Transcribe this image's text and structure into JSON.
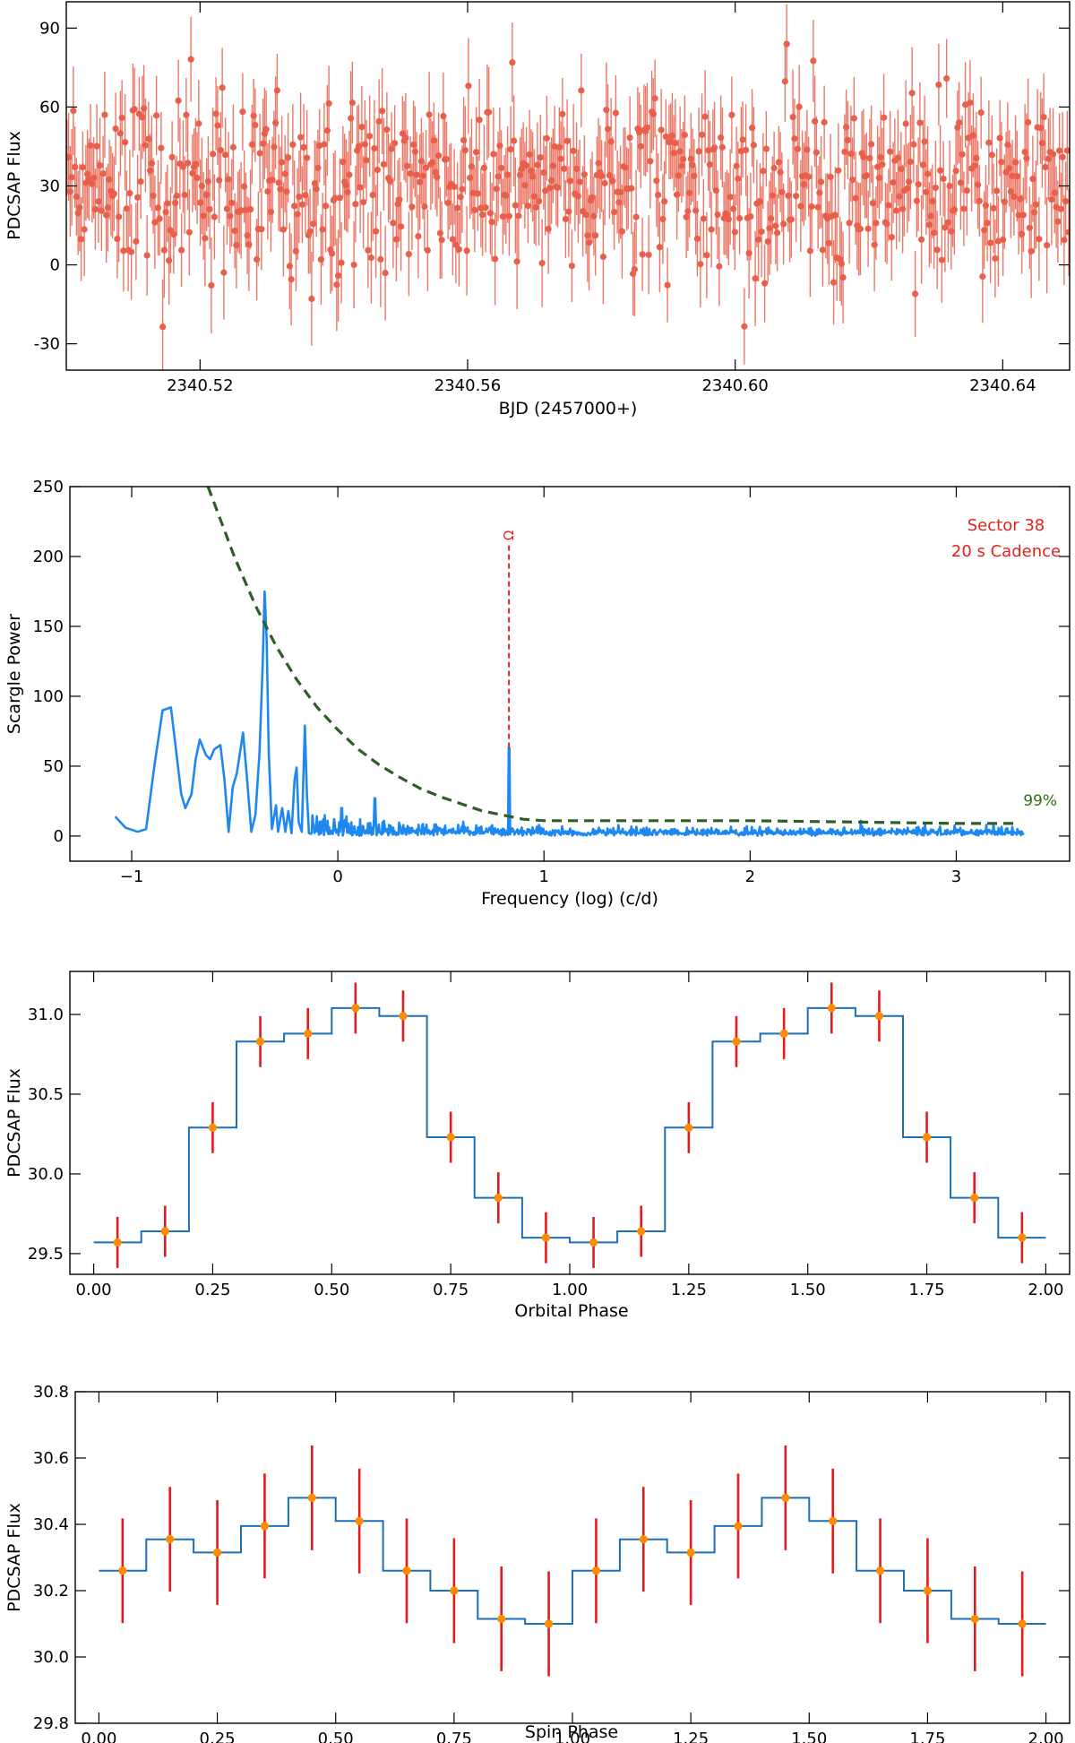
{
  "chart_data": [
    {
      "type": "scatter",
      "panel": "lightcurve",
      "xlabel": "BJD (2457000+)",
      "ylabel": "PDCSAP Flux",
      "xlim": [
        2340.5,
        2340.65
      ],
      "ylim": [
        -40,
        100
      ],
      "x_ticks": [
        2340.52,
        2340.56,
        2340.6,
        2340.64
      ],
      "x_tick_labels": [
        "2340.52",
        "2340.56",
        "2340.60",
        "2340.64"
      ],
      "y_ticks": [
        -30,
        0,
        30,
        60,
        90
      ],
      "y_tick_labels": [
        "-30",
        "0",
        "30",
        "60",
        "90"
      ],
      "n_points": 640,
      "mean_flux": 30,
      "flux_scatter": 18,
      "typical_error": 16,
      "color": "#e8604c"
    },
    {
      "type": "line",
      "panel": "periodogram",
      "xlabel": "Frequency (log) (c/d)",
      "ylabel": "Scargle Power",
      "xlim": [
        -1.3,
        3.55
      ],
      "ylim": [
        -18,
        250
      ],
      "x_ticks": [
        -1,
        0,
        1,
        2,
        3
      ],
      "x_tick_labels": [
        "−1",
        "0",
        "1",
        "2",
        "3"
      ],
      "y_ticks": [
        0,
        50,
        100,
        150,
        200,
        250
      ],
      "y_tick_labels": [
        "0",
        "50",
        "100",
        "150",
        "200",
        "250"
      ],
      "series": [
        {
          "name": "power",
          "color": "#1e88f0",
          "peaks": [
            {
              "x": -1.08,
              "y": 14
            },
            {
              "x": -0.97,
              "y": 3
            },
            {
              "x": -0.85,
              "y": 90
            },
            {
              "x": -0.81,
              "y": 92
            },
            {
              "x": -0.74,
              "y": 20
            },
            {
              "x": -0.67,
              "y": 69
            },
            {
              "x": -0.62,
              "y": 55
            },
            {
              "x": -0.57,
              "y": 65
            },
            {
              "x": -0.46,
              "y": 74
            },
            {
              "x": -0.36,
              "y": 175
            },
            {
              "x": -0.2,
              "y": 49
            },
            {
              "x": -0.16,
              "y": 79
            },
            {
              "x": 0.02,
              "y": 20
            },
            {
              "x": 0.18,
              "y": 27
            },
            {
              "x": 0.83,
              "y": 63
            }
          ]
        },
        {
          "name": "99% significance",
          "color": "#2e5e27",
          "style": "dashed",
          "x": [
            -0.63,
            -0.5,
            -0.4,
            -0.3,
            -0.2,
            -0.1,
            0.0,
            0.1,
            0.2,
            0.3,
            0.4,
            0.5,
            0.6,
            0.7,
            0.8,
            0.9,
            1.0,
            1.5,
            2.0,
            2.5,
            3.0,
            3.3
          ],
          "y": [
            250,
            199,
            165,
            136,
            112,
            92,
            76,
            62,
            51,
            42,
            34,
            28,
            23,
            18,
            15,
            12,
            11,
            11,
            11,
            10,
            9,
            9
          ]
        }
      ],
      "annotations": [
        {
          "text": "Sector 38",
          "color": "#e0241c"
        },
        {
          "text": "20 s Cadence",
          "color": "#e0241c"
        },
        {
          "text": "99%",
          "color": "#2e6e1a"
        },
        {
          "text": "Ω",
          "color": "#e0241c",
          "x": 0.83,
          "y_from": 63,
          "y_to": 210
        }
      ]
    },
    {
      "type": "step",
      "panel": "orbital",
      "xlabel": "Orbital Phase",
      "ylabel": "PDCSAP Flux",
      "xlim": [
        -0.05,
        2.05
      ],
      "ylim": [
        29.37,
        31.27
      ],
      "x_ticks": [
        0,
        0.25,
        0.5,
        0.75,
        1.0,
        1.25,
        1.5,
        1.75,
        2.0
      ],
      "x_tick_labels": [
        "0.00",
        "0.25",
        "0.50",
        "0.75",
        "1.00",
        "1.25",
        "1.50",
        "1.75",
        "2.00"
      ],
      "y_ticks": [
        29.5,
        30.0,
        30.5,
        31.0
      ],
      "y_tick_labels": [
        "29.5",
        "30.0",
        "30.5",
        "31.0"
      ],
      "x": [
        0.05,
        0.15,
        0.25,
        0.35,
        0.45,
        0.55,
        0.65,
        0.75,
        0.85,
        0.95,
        1.05,
        1.15,
        1.25,
        1.35,
        1.45,
        1.55,
        1.65,
        1.75,
        1.85,
        1.95
      ],
      "values": [
        29.57,
        29.64,
        30.29,
        30.83,
        30.88,
        31.04,
        30.99,
        30.23,
        29.85,
        29.6,
        29.57,
        29.64,
        30.29,
        30.83,
        30.88,
        31.04,
        30.99,
        30.23,
        29.85,
        29.6
      ],
      "error": 0.16
    },
    {
      "type": "step",
      "panel": "spin",
      "xlabel": "Spin Phase",
      "ylabel": "PDCSAP Flux",
      "xlim": [
        -0.05,
        2.05
      ],
      "ylim": [
        29.8,
        30.8
      ],
      "x_ticks": [
        0,
        0.25,
        0.5,
        0.75,
        1.0,
        1.25,
        1.5,
        1.75,
        2.0
      ],
      "x_tick_labels": [
        "0.00",
        "0.25",
        "0.50",
        "0.75",
        "1.00",
        "1.25",
        "1.50",
        "1.75",
        "2.00"
      ],
      "y_ticks": [
        29.8,
        30.0,
        30.2,
        30.4,
        30.6,
        30.8
      ],
      "y_tick_labels": [
        "29.8",
        "30.0",
        "30.2",
        "30.4",
        "30.6",
        "30.8"
      ],
      "x": [
        0.05,
        0.15,
        0.25,
        0.35,
        0.45,
        0.55,
        0.65,
        0.75,
        0.85,
        0.95,
        1.05,
        1.15,
        1.25,
        1.35,
        1.45,
        1.55,
        1.65,
        1.75,
        1.85,
        1.95
      ],
      "values": [
        30.26,
        30.355,
        30.315,
        30.395,
        30.48,
        30.41,
        30.26,
        30.2,
        30.115,
        30.1,
        30.26,
        30.355,
        30.315,
        30.395,
        30.48,
        30.41,
        30.26,
        30.2,
        30.115,
        30.1
      ],
      "error": 0.158
    }
  ]
}
